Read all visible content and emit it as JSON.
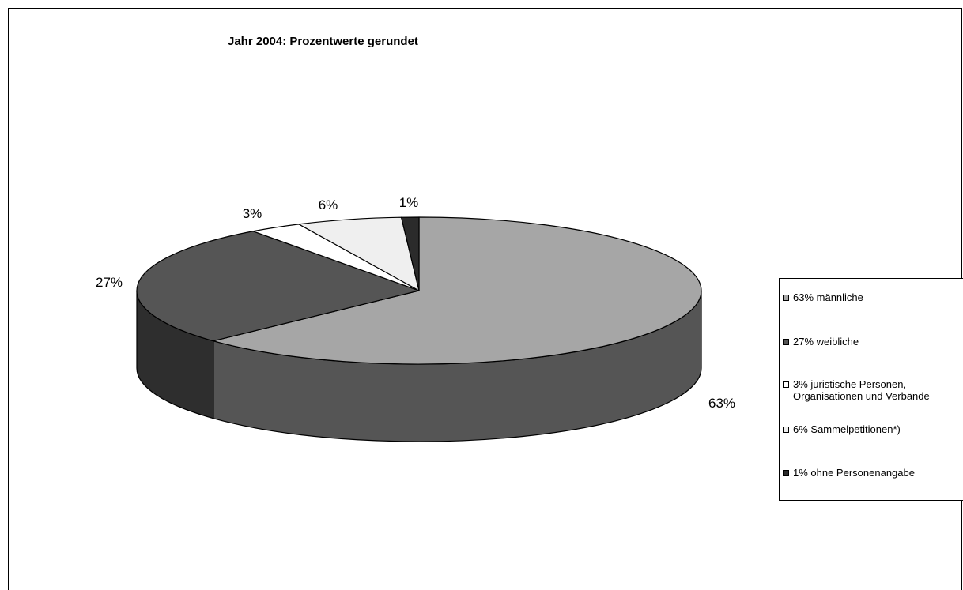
{
  "chart_data": {
    "type": "pie",
    "title": "Jahr 2004: Prozentwerte gerundet",
    "categories": [
      "63% männliche",
      "27% weibliche",
      "3% juristische Personen,\nOrganisationen und Verbände",
      "6% Sammelpetitionen*)",
      "1% ohne Personenangabe"
    ],
    "values": [
      63,
      27,
      3,
      6,
      1
    ],
    "data_labels": [
      "63%",
      "27%",
      "3%",
      "6%",
      "1%"
    ],
    "colors": [
      "#a6a6a6",
      "#555555",
      "#ffffff",
      "#efefef",
      "#2b2b2b"
    ],
    "side_colors": [
      "#555555",
      "#2e2e2e",
      "#dddddd",
      "#cfcfcf",
      "#1c1c1c"
    ],
    "style": "3d",
    "legend_position": "right"
  }
}
